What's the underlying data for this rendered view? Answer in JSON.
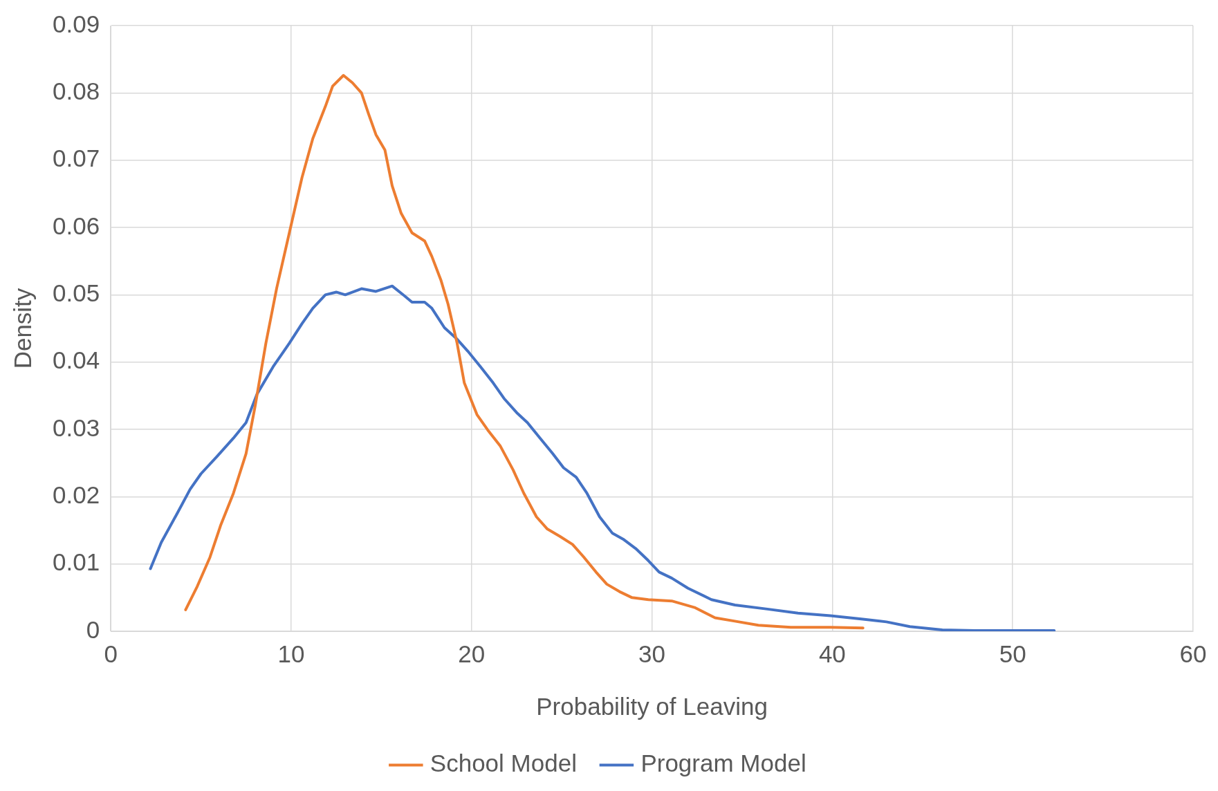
{
  "chart_data": {
    "type": "line",
    "xlabel": "Probability of Leaving",
    "ylabel": "Density",
    "xlim": [
      0,
      60
    ],
    "xticks": [
      0,
      10,
      20,
      30,
      40,
      50,
      60
    ],
    "ylim": [
      0,
      0.09
    ],
    "yticks": [
      0,
      0.01,
      0.02,
      0.03,
      0.04,
      0.05,
      0.06,
      0.07,
      0.08,
      0.09
    ],
    "grid": true,
    "legend": "bottom",
    "marker": "none",
    "line_style": "solid",
    "series": [
      {
        "name": "School Model",
        "color": "#ed7d31",
        "x": [
          4.15,
          4.8,
          5.5,
          6.1,
          6.8,
          7.5,
          8.0,
          8.6,
          9.2,
          9.9,
          10.6,
          11.2,
          11.9,
          12.3,
          12.9,
          13.4,
          13.9,
          14.3,
          14.7,
          15.2,
          15.6,
          16.1,
          16.7,
          17.4,
          17.8,
          18.3,
          18.7,
          19.2,
          19.6,
          20.3,
          20.9,
          21.6,
          22.3,
          22.9,
          23.6,
          24.2,
          24.9,
          25.6,
          26.2,
          26.9,
          27.5,
          28.2,
          28.9,
          29.8,
          31.1,
          32.4,
          33.5,
          34.6,
          35.9,
          37.7,
          39.9,
          41.7
        ],
        "values": [
          0.0032,
          0.0067,
          0.011,
          0.0158,
          0.0205,
          0.0264,
          0.0334,
          0.0428,
          0.051,
          0.0592,
          0.0674,
          0.0732,
          0.078,
          0.081,
          0.0826,
          0.0815,
          0.08,
          0.0768,
          0.0738,
          0.0715,
          0.0662,
          0.0621,
          0.0592,
          0.058,
          0.0557,
          0.0522,
          0.0486,
          0.0428,
          0.0369,
          0.0322,
          0.0299,
          0.0275,
          0.024,
          0.0205,
          0.017,
          0.0152,
          0.0141,
          0.0129,
          0.0111,
          0.0088,
          0.007,
          0.0059,
          0.005,
          0.0047,
          0.0045,
          0.0035,
          0.002,
          0.0015,
          0.0009,
          0.0006,
          0.0006,
          0.0005
        ]
      },
      {
        "name": "Program Model",
        "color": "#4472c4",
        "x": [
          2.2,
          2.8,
          3.7,
          4.4,
          5.0,
          5.9,
          6.8,
          7.5,
          8.1,
          9.0,
          9.9,
          10.6,
          11.2,
          11.9,
          12.5,
          13.0,
          13.9,
          14.7,
          15.6,
          16.3,
          16.7,
          17.4,
          17.8,
          18.5,
          19.2,
          19.8,
          20.5,
          21.2,
          21.8,
          22.5,
          23.1,
          23.8,
          24.5,
          25.1,
          25.8,
          26.4,
          27.1,
          27.8,
          28.4,
          29.1,
          29.8,
          30.4,
          31.1,
          32.0,
          33.3,
          34.6,
          36.4,
          38.1,
          39.9,
          41.7,
          43.0,
          44.3,
          46.1,
          47.9,
          49.6,
          52.3
        ],
        "values": [
          0.0093,
          0.0132,
          0.0176,
          0.0211,
          0.0234,
          0.026,
          0.0287,
          0.031,
          0.0352,
          0.0393,
          0.0428,
          0.0457,
          0.048,
          0.05,
          0.0504,
          0.05,
          0.0509,
          0.0505,
          0.0513,
          0.0498,
          0.0489,
          0.0489,
          0.048,
          0.0451,
          0.0434,
          0.0416,
          0.0393,
          0.0369,
          0.0346,
          0.0325,
          0.031,
          0.0287,
          0.0264,
          0.0243,
          0.0229,
          0.0205,
          0.017,
          0.0146,
          0.0137,
          0.0123,
          0.0105,
          0.0088,
          0.0079,
          0.0064,
          0.0047,
          0.0039,
          0.0033,
          0.0027,
          0.0023,
          0.0018,
          0.0014,
          0.0007,
          0.0002,
          0.0001,
          0.0001,
          0.0001
        ]
      }
    ]
  }
}
